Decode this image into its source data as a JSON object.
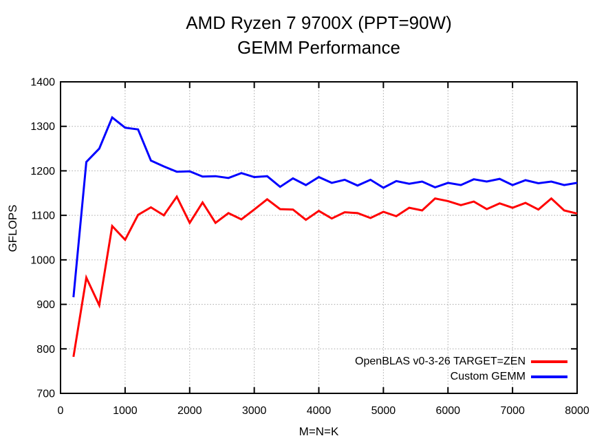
{
  "title": {
    "line1": "AMD Ryzen 7 9700X (PPT=90W)",
    "line2": "GEMM Performance"
  },
  "axes": {
    "ylabel": "GFLOPS",
    "xlabel": "M=N=K"
  },
  "legend": {
    "entries": [
      {
        "label": "OpenBLAS v0-3-26 TARGET=ZEN",
        "color": "#ff0000"
      },
      {
        "label": "Custom GEMM",
        "color": "#0000ff"
      }
    ]
  },
  "colors": {
    "openblas_series": "#ff0000",
    "custom_series": "#0000ff",
    "grid": "#a6a6a6",
    "axis_border": "#000000"
  },
  "chart_data": {
    "type": "line",
    "title": "AMD Ryzen 7 9700X (PPT=90W) GEMM Performance",
    "xlabel": "M=N=K",
    "ylabel": "GFLOPS",
    "xlim": [
      0,
      8000
    ],
    "ylim": [
      700,
      1400
    ],
    "x_ticks": [
      0,
      1000,
      2000,
      3000,
      4000,
      5000,
      6000,
      7000,
      8000
    ],
    "y_ticks": [
      700,
      800,
      900,
      1000,
      1100,
      1200,
      1300,
      1400
    ],
    "grid": true,
    "grid_style": "dotted",
    "legend_position": "bottom-right-inside",
    "x": [
      200,
      400,
      600,
      800,
      1000,
      1200,
      1400,
      1600,
      1800,
      2000,
      2200,
      2400,
      2600,
      2800,
      3000,
      3200,
      3400,
      3600,
      3800,
      4000,
      4200,
      4400,
      4600,
      4800,
      5000,
      5200,
      5400,
      5600,
      5800,
      6000,
      6200,
      6400,
      6600,
      6800,
      7000,
      7200,
      7400,
      7600,
      7800,
      8000
    ],
    "series": [
      {
        "name": "OpenBLAS v0-3-26 TARGET=ZEN",
        "color": "#ff0000",
        "values": [
          782,
          960,
          898,
          1076,
          1045,
          1101,
          1118,
          1100,
          1142,
          1083,
          1129,
          1083,
          1105,
          1091,
          1113,
          1136,
          1114,
          1113,
          1090,
          1110,
          1093,
          1107,
          1105,
          1094,
          1108,
          1098,
          1117,
          1111,
          1138,
          1132,
          1123,
          1131,
          1114,
          1127,
          1117,
          1128,
          1113,
          1138,
          1111,
          1104
        ]
      },
      {
        "name": "Custom GEMM",
        "color": "#0000ff",
        "values": [
          916,
          1220,
          1250,
          1320,
          1297,
          1293,
          1223,
          1210,
          1198,
          1199,
          1187,
          1188,
          1184,
          1195,
          1186,
          1188,
          1164,
          1183,
          1168,
          1186,
          1173,
          1180,
          1167,
          1180,
          1162,
          1177,
          1171,
          1176,
          1163,
          1173,
          1168,
          1181,
          1176,
          1182,
          1168,
          1179,
          1172,
          1176,
          1168,
          1173
        ]
      }
    ]
  }
}
